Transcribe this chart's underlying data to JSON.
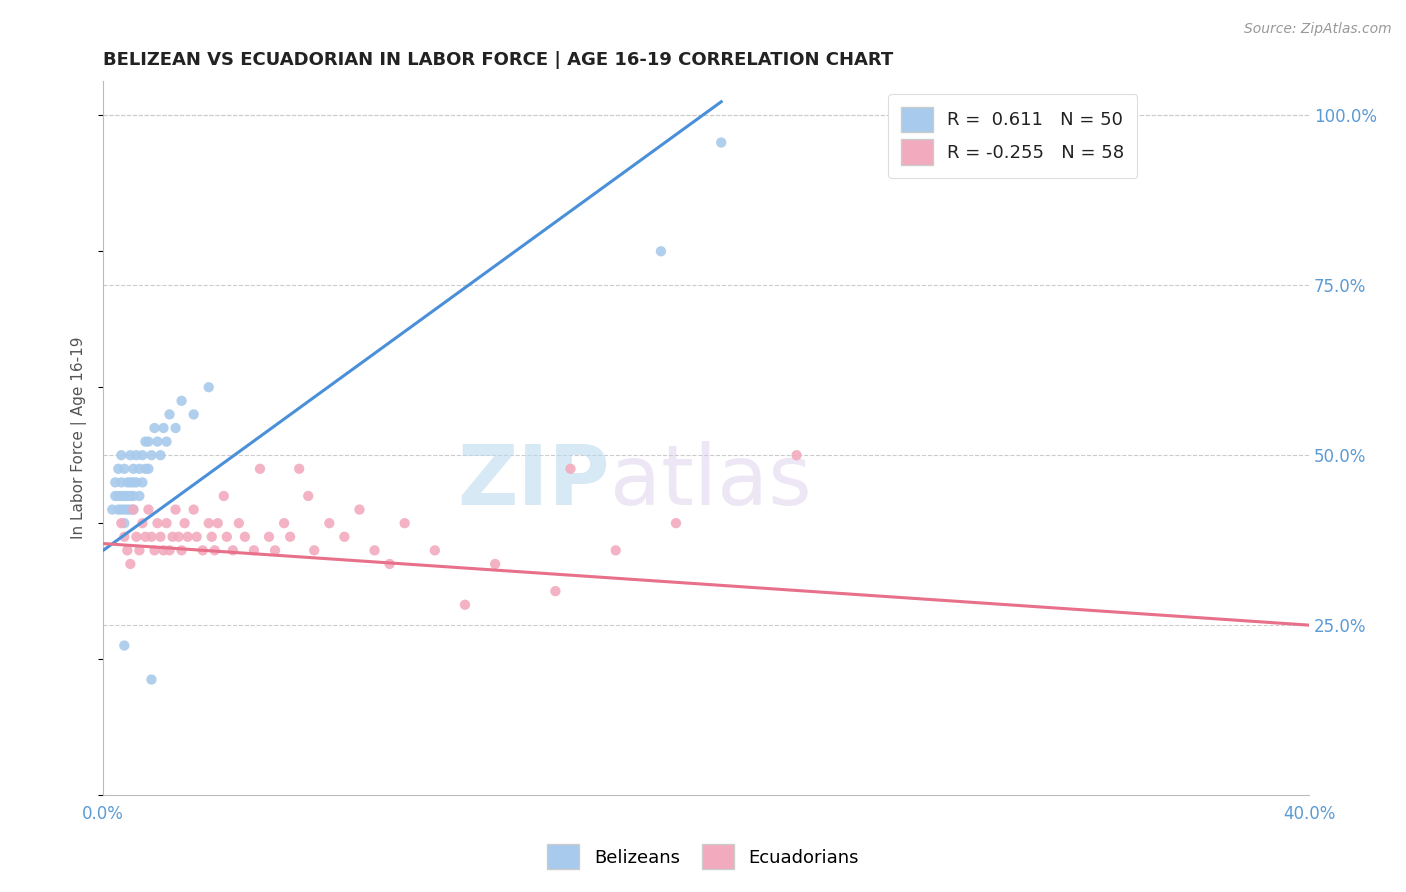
{
  "title": "BELIZEAN VS ECUADORIAN IN LABOR FORCE | AGE 16-19 CORRELATION CHART",
  "source": "Source: ZipAtlas.com",
  "ylabel": "In Labor Force | Age 16-19",
  "xlim": [
    0.0,
    0.4
  ],
  "ylim": [
    0.0,
    1.05
  ],
  "xticks": [
    0.0,
    0.05,
    0.1,
    0.15,
    0.2,
    0.25,
    0.3,
    0.35,
    0.4
  ],
  "yticks_right": [
    0.25,
    0.5,
    0.75,
    1.0
  ],
  "ytick_right_labels": [
    "25.0%",
    "50.0%",
    "75.0%",
    "100.0%"
  ],
  "blue_color": "#A8CAEC",
  "pink_color": "#F2ABBE",
  "blue_line_color": "#4A90D9",
  "pink_line_color": "#E8708A",
  "R_blue": 0.611,
  "N_blue": 50,
  "R_pink": -0.255,
  "N_pink": 58,
  "legend_label_blue": "Belizeans",
  "legend_label_pink": "Ecuadorians",
  "watermark_zip": "ZIP",
  "watermark_atlas": "atlas",
  "blue_scatter": [
    [
      0.003,
      0.42
    ],
    [
      0.004,
      0.46
    ],
    [
      0.004,
      0.44
    ],
    [
      0.005,
      0.48
    ],
    [
      0.005,
      0.44
    ],
    [
      0.005,
      0.42
    ],
    [
      0.006,
      0.5
    ],
    [
      0.006,
      0.46
    ],
    [
      0.006,
      0.44
    ],
    [
      0.006,
      0.42
    ],
    [
      0.007,
      0.48
    ],
    [
      0.007,
      0.44
    ],
    [
      0.007,
      0.42
    ],
    [
      0.007,
      0.4
    ],
    [
      0.008,
      0.46
    ],
    [
      0.008,
      0.44
    ],
    [
      0.008,
      0.42
    ],
    [
      0.009,
      0.5
    ],
    [
      0.009,
      0.46
    ],
    [
      0.009,
      0.44
    ],
    [
      0.009,
      0.42
    ],
    [
      0.01,
      0.48
    ],
    [
      0.01,
      0.46
    ],
    [
      0.01,
      0.44
    ],
    [
      0.01,
      0.42
    ],
    [
      0.011,
      0.5
    ],
    [
      0.011,
      0.46
    ],
    [
      0.012,
      0.48
    ],
    [
      0.012,
      0.44
    ],
    [
      0.013,
      0.5
    ],
    [
      0.013,
      0.46
    ],
    [
      0.014,
      0.52
    ],
    [
      0.014,
      0.48
    ],
    [
      0.015,
      0.52
    ],
    [
      0.015,
      0.48
    ],
    [
      0.016,
      0.5
    ],
    [
      0.017,
      0.54
    ],
    [
      0.018,
      0.52
    ],
    [
      0.019,
      0.5
    ],
    [
      0.02,
      0.54
    ],
    [
      0.021,
      0.52
    ],
    [
      0.022,
      0.56
    ],
    [
      0.024,
      0.54
    ],
    [
      0.026,
      0.58
    ],
    [
      0.03,
      0.56
    ],
    [
      0.035,
      0.6
    ],
    [
      0.007,
      0.22
    ],
    [
      0.016,
      0.17
    ],
    [
      0.185,
      0.8
    ],
    [
      0.205,
      0.96
    ]
  ],
  "pink_scatter": [
    [
      0.006,
      0.4
    ],
    [
      0.007,
      0.38
    ],
    [
      0.008,
      0.36
    ],
    [
      0.009,
      0.34
    ],
    [
      0.01,
      0.42
    ],
    [
      0.011,
      0.38
    ],
    [
      0.012,
      0.36
    ],
    [
      0.013,
      0.4
    ],
    [
      0.014,
      0.38
    ],
    [
      0.015,
      0.42
    ],
    [
      0.016,
      0.38
    ],
    [
      0.017,
      0.36
    ],
    [
      0.018,
      0.4
    ],
    [
      0.019,
      0.38
    ],
    [
      0.02,
      0.36
    ],
    [
      0.021,
      0.4
    ],
    [
      0.022,
      0.36
    ],
    [
      0.023,
      0.38
    ],
    [
      0.024,
      0.42
    ],
    [
      0.025,
      0.38
    ],
    [
      0.026,
      0.36
    ],
    [
      0.027,
      0.4
    ],
    [
      0.028,
      0.38
    ],
    [
      0.03,
      0.42
    ],
    [
      0.031,
      0.38
    ],
    [
      0.033,
      0.36
    ],
    [
      0.035,
      0.4
    ],
    [
      0.036,
      0.38
    ],
    [
      0.037,
      0.36
    ],
    [
      0.038,
      0.4
    ],
    [
      0.04,
      0.44
    ],
    [
      0.041,
      0.38
    ],
    [
      0.043,
      0.36
    ],
    [
      0.045,
      0.4
    ],
    [
      0.047,
      0.38
    ],
    [
      0.05,
      0.36
    ],
    [
      0.052,
      0.48
    ],
    [
      0.055,
      0.38
    ],
    [
      0.057,
      0.36
    ],
    [
      0.06,
      0.4
    ],
    [
      0.062,
      0.38
    ],
    [
      0.065,
      0.48
    ],
    [
      0.068,
      0.44
    ],
    [
      0.07,
      0.36
    ],
    [
      0.075,
      0.4
    ],
    [
      0.08,
      0.38
    ],
    [
      0.085,
      0.42
    ],
    [
      0.09,
      0.36
    ],
    [
      0.095,
      0.34
    ],
    [
      0.1,
      0.4
    ],
    [
      0.11,
      0.36
    ],
    [
      0.12,
      0.28
    ],
    [
      0.13,
      0.34
    ],
    [
      0.15,
      0.3
    ],
    [
      0.155,
      0.48
    ],
    [
      0.17,
      0.36
    ],
    [
      0.19,
      0.4
    ],
    [
      0.23,
      0.5
    ]
  ]
}
